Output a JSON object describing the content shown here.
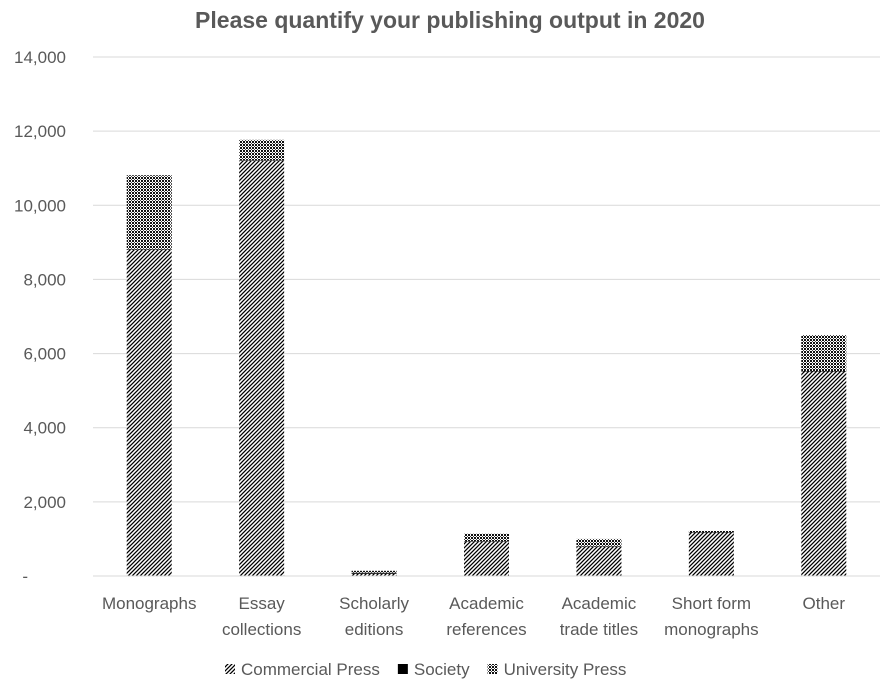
{
  "chart_data": {
    "type": "bar",
    "stacked": true,
    "title": "Please quantify your publishing output in 2020",
    "xlabel": "",
    "ylabel": "",
    "ylim": [
      0,
      14000
    ],
    "yticks": [
      {
        "value": 0,
        "label": "-"
      },
      {
        "value": 2000,
        "label": "2,000"
      },
      {
        "value": 4000,
        "label": "4,000"
      },
      {
        "value": 6000,
        "label": "6,000"
      },
      {
        "value": 8000,
        "label": "8,000"
      },
      {
        "value": 10000,
        "label": "10,000"
      },
      {
        "value": 12000,
        "label": "12,000"
      },
      {
        "value": 14000,
        "label": "14,000"
      }
    ],
    "grid": true,
    "legend_position": "bottom",
    "categories": [
      [
        "Monographs"
      ],
      [
        "Essay",
        "collections"
      ],
      [
        "Scholarly",
        "editions"
      ],
      [
        "Academic",
        "references"
      ],
      [
        "Academic",
        "trade titles"
      ],
      [
        "Short form",
        "monographs"
      ],
      [
        "Other"
      ]
    ],
    "series": [
      {
        "name": "Commercial Press",
        "pattern": "diagonal",
        "values": [
          8800,
          11200,
          60,
          930,
          790,
          1180,
          5520
        ]
      },
      {
        "name": "Society",
        "pattern": "solid",
        "values": [
          10,
          15,
          30,
          10,
          10,
          5,
          10
        ]
      },
      {
        "name": "University Press",
        "pattern": "crosshatch",
        "values": [
          2000,
          550,
          50,
          200,
          200,
          30,
          970
        ]
      }
    ],
    "colors": {
      "text": "#595959",
      "grid": "#d9d9d9",
      "ink": "#000000"
    }
  }
}
